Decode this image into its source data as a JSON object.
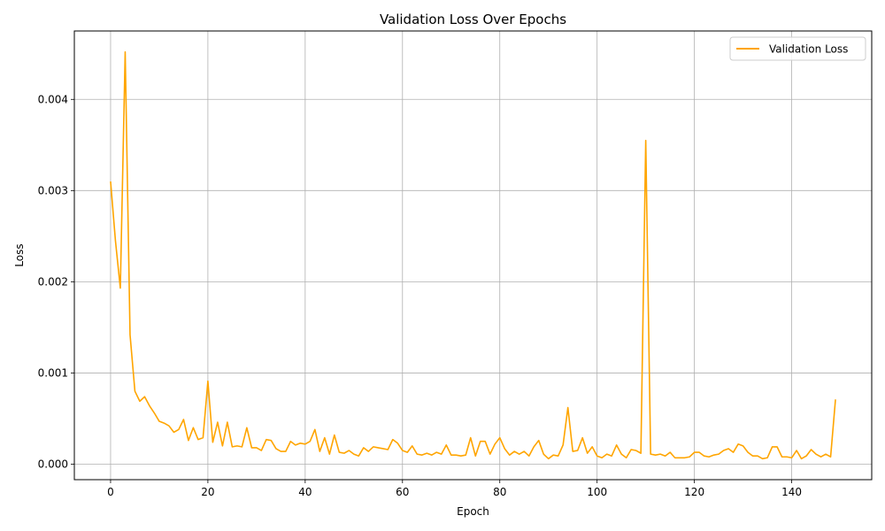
{
  "chart_data": {
    "type": "line",
    "title": "Validation Loss Over Epochs",
    "xlabel": "Epoch",
    "ylabel": "Loss",
    "xlim": [
      -7.45,
      156.45
    ],
    "ylim": [
      -0.00017,
      0.00475
    ],
    "xticks": [
      0,
      20,
      40,
      60,
      80,
      100,
      120,
      140
    ],
    "xtick_labels": [
      "0",
      "20",
      "40",
      "60",
      "80",
      "100",
      "120",
      "140"
    ],
    "yticks": [
      0.0,
      0.001,
      0.002,
      0.003,
      0.004
    ],
    "ytick_labels": [
      "0.000",
      "0.001",
      "0.002",
      "0.003",
      "0.004"
    ],
    "grid": true,
    "legend_position": "top-right",
    "series": [
      {
        "name": "Validation Loss",
        "color": "#FFA500",
        "x_start": 0,
        "values": [
          0.0031,
          0.00245,
          0.00193,
          0.00452,
          0.00142,
          0.0008,
          0.00069,
          0.00074,
          0.00064,
          0.00056,
          0.00047,
          0.00045,
          0.00042,
          0.00035,
          0.00038,
          0.00049,
          0.00026,
          0.0004,
          0.00027,
          0.00029,
          0.00091,
          0.00024,
          0.00046,
          0.0002,
          0.00046,
          0.00019,
          0.0002,
          0.00019,
          0.0004,
          0.00018,
          0.00018,
          0.00015,
          0.00027,
          0.00026,
          0.00017,
          0.00014,
          0.00014,
          0.00025,
          0.00021,
          0.00023,
          0.00022,
          0.00025,
          0.00038,
          0.00014,
          0.00029,
          0.00011,
          0.00032,
          0.00013,
          0.00012,
          0.00015,
          0.00011,
          9e-05,
          0.00018,
          0.00014,
          0.00019,
          0.00018,
          0.00017,
          0.00016,
          0.00027,
          0.00023,
          0.00015,
          0.00013,
          0.0002,
          0.00011,
          0.0001,
          0.00012,
          0.0001,
          0.00013,
          0.00011,
          0.00021,
          0.0001,
          0.0001,
          9e-05,
          0.0001,
          0.00029,
          9e-05,
          0.00025,
          0.00025,
          0.00011,
          0.00022,
          0.00029,
          0.00017,
          0.0001,
          0.00014,
          0.00011,
          0.00014,
          9e-05,
          0.00019,
          0.00026,
          0.00011,
          6e-05,
          0.0001,
          9e-05,
          0.00021,
          0.00062,
          0.00014,
          0.00015,
          0.00029,
          0.00012,
          0.00019,
          9e-05,
          7e-05,
          0.00011,
          9e-05,
          0.00021,
          0.00011,
          7e-05,
          0.00016,
          0.00015,
          0.00012,
          0.00355,
          0.00011,
          0.0001,
          0.00011,
          9e-05,
          0.00013,
          7e-05,
          7e-05,
          7e-05,
          8e-05,
          0.00013,
          0.00013,
          9e-05,
          8e-05,
          0.0001,
          0.00011,
          0.00015,
          0.00017,
          0.00013,
          0.00022,
          0.0002,
          0.00013,
          9e-05,
          9e-05,
          6e-05,
          7e-05,
          0.00019,
          0.00019,
          8e-05,
          8e-05,
          7e-05,
          0.00015,
          6e-05,
          9e-05,
          0.00016,
          0.00011,
          8e-05,
          0.00011,
          8e-05,
          0.00071
        ]
      }
    ]
  }
}
